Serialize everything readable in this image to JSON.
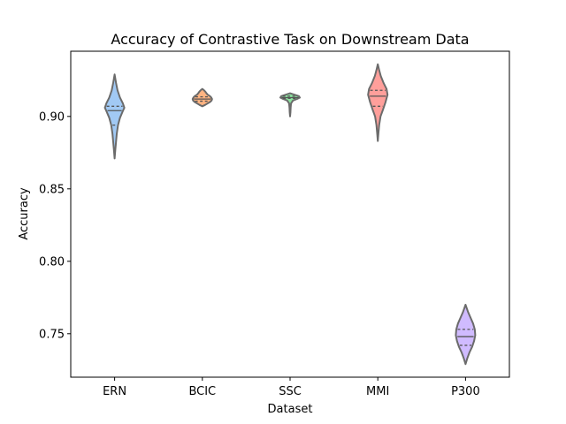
{
  "chart_data": {
    "type": "violin",
    "title": "Accuracy of Contrastive Task on Downstream Data",
    "xlabel": "Dataset",
    "ylabel": "Accuracy",
    "ylim": [
      0.72,
      0.945
    ],
    "yticks": [
      0.75,
      0.8,
      0.85,
      0.9
    ],
    "ytick_labels": [
      "0.75",
      "0.80",
      "0.85",
      "0.90"
    ],
    "grid": false,
    "categories": [
      "ERN",
      "BCIC",
      "SSC",
      "MMI",
      "P300"
    ],
    "series": [
      {
        "category": "ERN",
        "color": "#a1c9f4",
        "min": 0.871,
        "max": 0.929,
        "quartiles": [
          0.894,
          0.904,
          0.907
        ],
        "profile": [
          [
            0.871,
            0.0
          ],
          [
            0.876,
            0.06
          ],
          [
            0.882,
            0.14
          ],
          [
            0.888,
            0.22
          ],
          [
            0.894,
            0.35
          ],
          [
            0.899,
            0.55
          ],
          [
            0.903,
            0.8
          ],
          [
            0.906,
            1.0
          ],
          [
            0.909,
            0.85
          ],
          [
            0.913,
            0.55
          ],
          [
            0.918,
            0.3
          ],
          [
            0.923,
            0.15
          ],
          [
            0.929,
            0.0
          ]
        ]
      },
      {
        "category": "BCIC",
        "color": "#ffb482",
        "min": 0.907,
        "max": 0.919,
        "quartiles": [
          0.9105,
          0.912,
          0.9135
        ],
        "profile": [
          [
            0.907,
            0.0
          ],
          [
            0.908,
            0.3
          ],
          [
            0.909,
            0.55
          ],
          [
            0.91,
            0.8
          ],
          [
            0.911,
            0.95
          ],
          [
            0.912,
            1.0
          ],
          [
            0.913,
            0.92
          ],
          [
            0.914,
            0.78
          ],
          [
            0.915,
            0.55
          ],
          [
            0.916,
            0.42
          ],
          [
            0.917,
            0.32
          ],
          [
            0.918,
            0.18
          ],
          [
            0.919,
            0.0
          ]
        ]
      },
      {
        "category": "SSC",
        "color": "#8de5a1",
        "min": 0.9,
        "max": 0.916,
        "quartiles": [
          0.9125,
          0.913,
          0.914
        ],
        "profile": [
          [
            0.9,
            0.0
          ],
          [
            0.903,
            0.04
          ],
          [
            0.906,
            0.06
          ],
          [
            0.909,
            0.1
          ],
          [
            0.911,
            0.3
          ],
          [
            0.912,
            0.7
          ],
          [
            0.913,
            1.0
          ],
          [
            0.914,
            0.9
          ],
          [
            0.915,
            0.45
          ],
          [
            0.916,
            0.0
          ]
        ]
      },
      {
        "category": "MMI",
        "color": "#ff9f9b",
        "min": 0.883,
        "max": 0.936,
        "quartiles": [
          0.907,
          0.914,
          0.918
        ],
        "profile": [
          [
            0.883,
            0.0
          ],
          [
            0.888,
            0.06
          ],
          [
            0.894,
            0.14
          ],
          [
            0.9,
            0.28
          ],
          [
            0.905,
            0.55
          ],
          [
            0.91,
            0.8
          ],
          [
            0.915,
            1.0
          ],
          [
            0.919,
            0.9
          ],
          [
            0.923,
            0.6
          ],
          [
            0.928,
            0.3
          ],
          [
            0.932,
            0.14
          ],
          [
            0.936,
            0.0
          ]
        ]
      },
      {
        "category": "P300",
        "color": "#d0bbff",
        "min": 0.729,
        "max": 0.77,
        "quartiles": [
          0.742,
          0.748,
          0.753
        ],
        "profile": [
          [
            0.729,
            0.0
          ],
          [
            0.733,
            0.18
          ],
          [
            0.737,
            0.4
          ],
          [
            0.741,
            0.68
          ],
          [
            0.745,
            0.88
          ],
          [
            0.749,
            1.0
          ],
          [
            0.753,
            0.95
          ],
          [
            0.757,
            0.78
          ],
          [
            0.761,
            0.52
          ],
          [
            0.765,
            0.26
          ],
          [
            0.77,
            0.0
          ]
        ]
      }
    ]
  }
}
